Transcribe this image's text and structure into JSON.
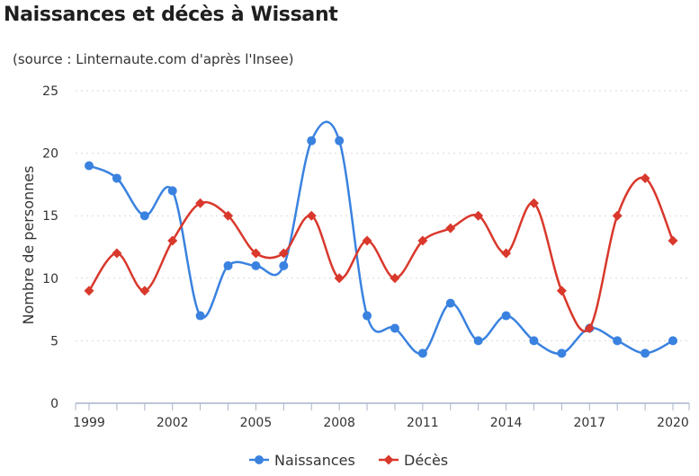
{
  "chart_data": {
    "type": "line",
    "title": "Naissances et décès à Wissant",
    "subtitle": "(source : Linternaute.com d'après l'Insee)",
    "xlabel": "",
    "ylabel": "Nombre de personnes",
    "x": [
      1999,
      2000,
      2001,
      2002,
      2003,
      2004,
      2005,
      2006,
      2007,
      2008,
      2009,
      2010,
      2011,
      2012,
      2013,
      2014,
      2015,
      2016,
      2017,
      2018,
      2019,
      2020
    ],
    "x_tick_labels": [
      "1999",
      "2002",
      "2005",
      "2008",
      "2011",
      "2014",
      "2017",
      "2020"
    ],
    "y_ticks": [
      "0",
      "5",
      "10",
      "15",
      "20",
      "25"
    ],
    "ylim": [
      0,
      25
    ],
    "xlim": [
      1999,
      2020
    ],
    "grid": true,
    "legend_position": "bottom-center",
    "series": [
      {
        "name": "Naissances",
        "color": "#3a82e0",
        "marker": "circle",
        "values": [
          19,
          18,
          15,
          17,
          7,
          11,
          11,
          11,
          21,
          21,
          7,
          6,
          4,
          8,
          5,
          7,
          5,
          4,
          6,
          5,
          4,
          5
        ]
      },
      {
        "name": "Décès",
        "color": "#d9382c",
        "marker": "diamond",
        "values": [
          9,
          12,
          9,
          13,
          16,
          15,
          12,
          12,
          15,
          10,
          13,
          10,
          13,
          14,
          15,
          12,
          16,
          9,
          6,
          15,
          18,
          13
        ]
      }
    ]
  }
}
